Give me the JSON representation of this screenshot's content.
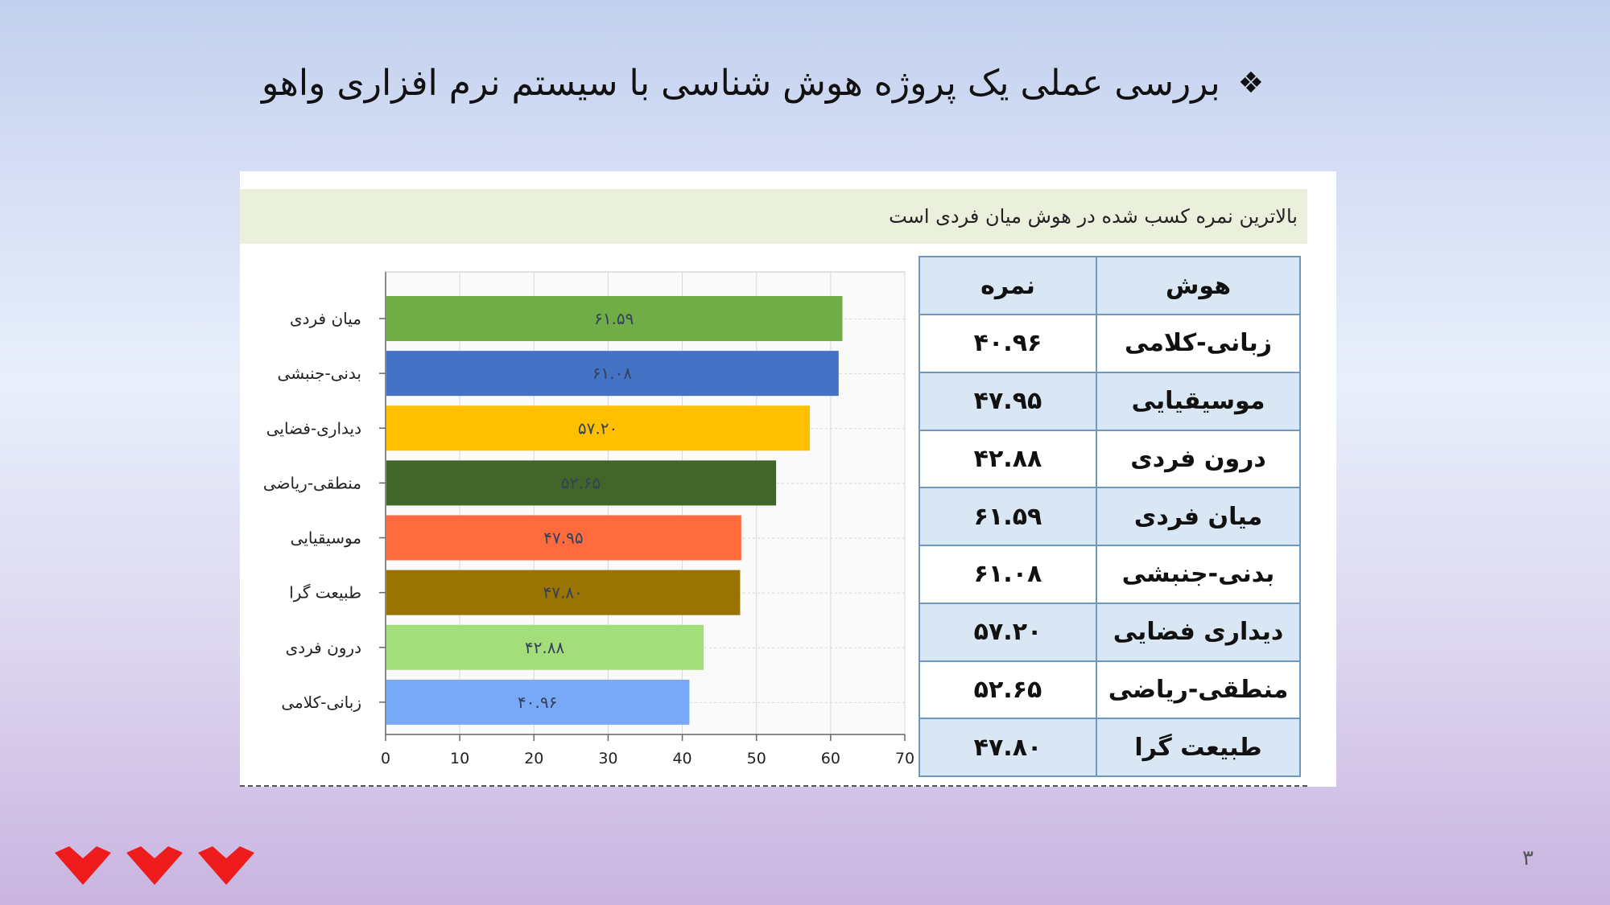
{
  "slide": {
    "title": "بررسی عملی یک پروژه هوش شناسی با سیستم نرم افزاری واهو",
    "bullet": "❖",
    "caption": "بالاترین نمره کسب شده در هوش میان فردی است",
    "page_number": "۳"
  },
  "table": {
    "headers": {
      "name": "هوش",
      "score": "نمره"
    },
    "rows": [
      {
        "name": "زبانی-کلامی",
        "score": "۴۰.۹۶"
      },
      {
        "name": "موسیقیایی",
        "score": "۴۷.۹۵"
      },
      {
        "name": "درون فردی",
        "score": "۴۲.۸۸"
      },
      {
        "name": "میان فردی",
        "score": "۶۱.۵۹"
      },
      {
        "name": "بدنی-جنبشی",
        "score": "۶۱.۰۸"
      },
      {
        "name": "دیداری فضایی",
        "score": "۵۷.۲۰"
      },
      {
        "name": "منطقی-ریاضی",
        "score": "۵۲.۶۵"
      },
      {
        "name": "طبیعت گرا",
        "score": "۴۷.۸۰"
      }
    ]
  },
  "chart_data": {
    "type": "bar",
    "orientation": "horizontal",
    "categories": [
      "میان فردی",
      "بدنی-جنبشی",
      "دیداری-فضایی",
      "منطقی-ریاضی",
      "موسیقیایی",
      "طبیعت گرا",
      "درون فردی",
      "زبانی-کلامی"
    ],
    "values": [
      61.59,
      61.08,
      57.2,
      52.65,
      47.95,
      47.8,
      42.88,
      40.96
    ],
    "data_labels": [
      "۶۱.۵۹",
      "۶۱.۰۸",
      "۵۷.۲۰",
      "۵۲.۶۵",
      "۴۷.۹۵",
      "۴۷.۸۰",
      "۴۲.۸۸",
      "۴۰.۹۶"
    ],
    "colors": [
      "#70ad47",
      "#4472c4",
      "#ffc000",
      "#426629",
      "#ff6b3d",
      "#9a7402",
      "#a3de7b",
      "#78a9f7"
    ],
    "xlim": [
      0,
      70
    ],
    "xticks": [
      0,
      10,
      20,
      30,
      40,
      50,
      60,
      70
    ],
    "grid": true
  }
}
